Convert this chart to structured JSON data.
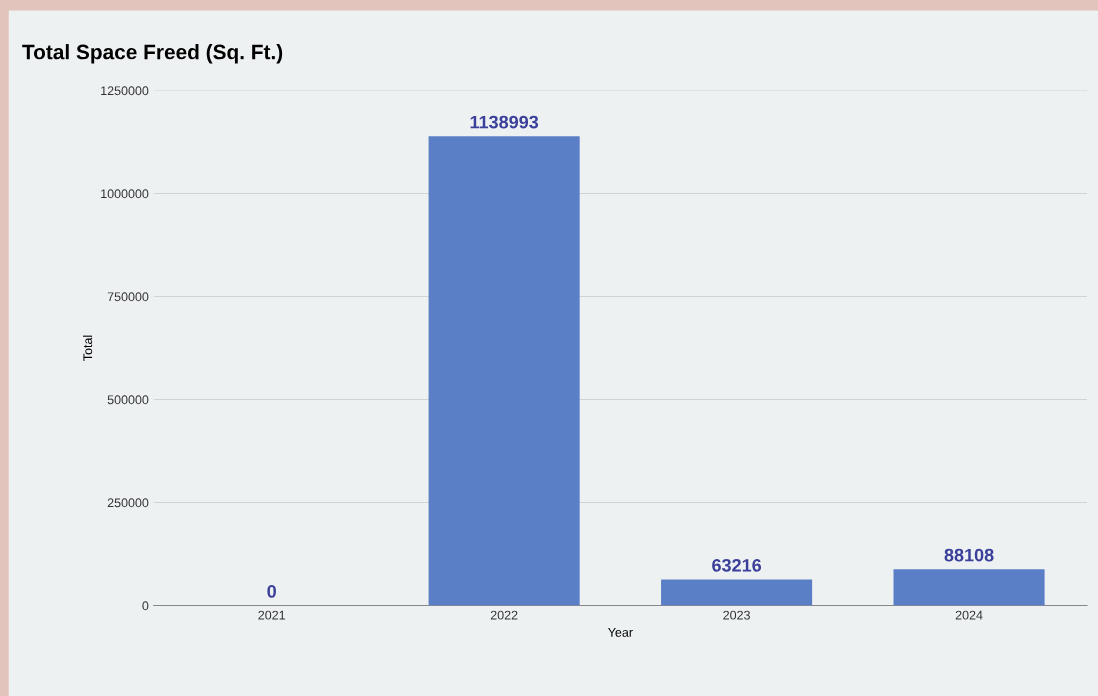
{
  "chart_data": {
    "type": "bar",
    "title": "Total Space Freed (Sq. Ft.)",
    "xlabel": "Year",
    "ylabel": "Total",
    "categories": [
      "2021",
      "2022",
      "2023",
      "2024"
    ],
    "values": [
      0,
      1138993,
      63216,
      88108
    ],
    "color": "#5b7fc7",
    "ylim": [
      0,
      1250000
    ],
    "yticks": [
      0,
      250000,
      500000,
      750000,
      1000000,
      1250000
    ],
    "grid": "y",
    "data_labels": true,
    "legend": false
  }
}
